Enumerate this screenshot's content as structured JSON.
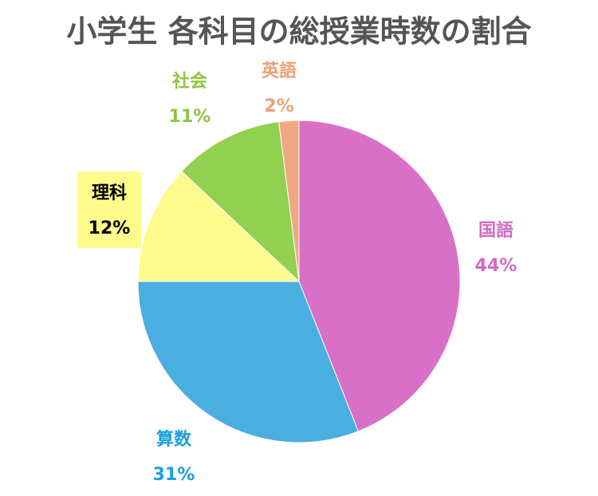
{
  "chart_data": {
    "type": "pie",
    "title": "小学生 各科目の総授業時数の割合",
    "categories": [
      "国語",
      "算数",
      "理科",
      "社会",
      "英語"
    ],
    "values": [
      44,
      31,
      12,
      11,
      2
    ],
    "value_labels": [
      "44%",
      "31%",
      "12%",
      "11%",
      "2%"
    ],
    "colors": [
      "#d870c8",
      "#4aaee0",
      "#fdfb8c",
      "#92d050",
      "#f0a882"
    ],
    "label_colors": [
      "#d26ac4",
      "#1aa0dc",
      "#000000",
      "#8cc63f",
      "#eba07a"
    ]
  }
}
